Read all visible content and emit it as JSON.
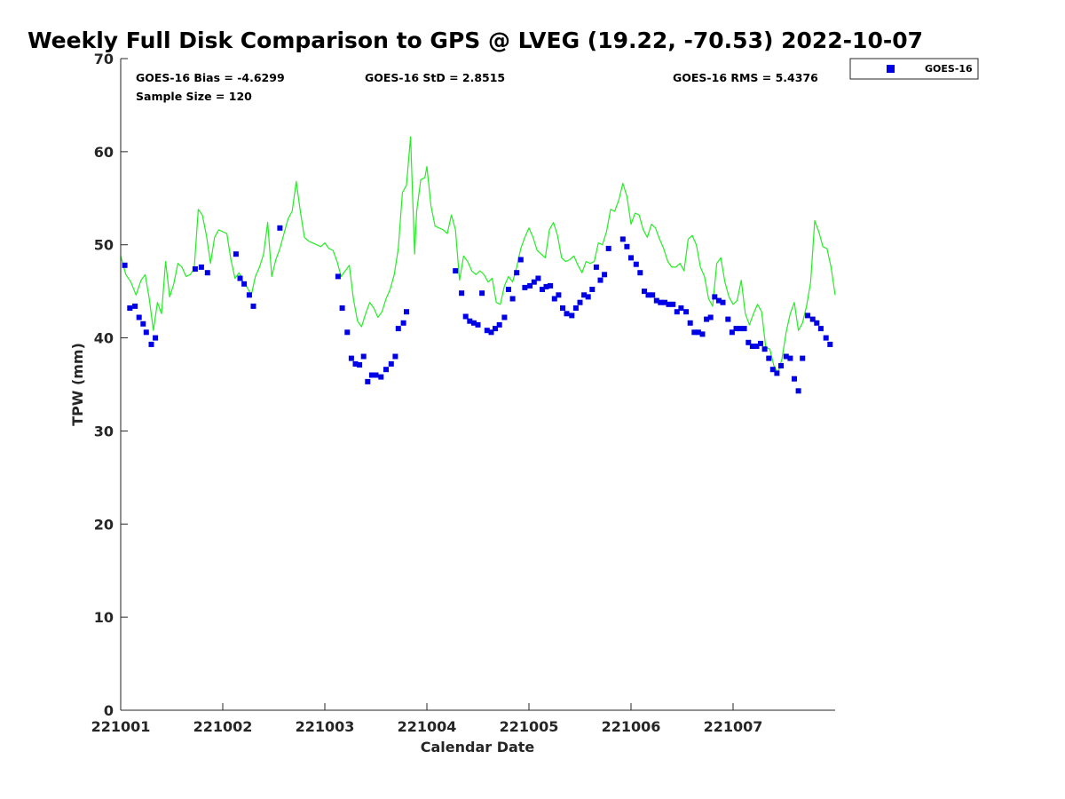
{
  "chart_data": {
    "type": "scatter",
    "title": "Weekly Full Disk Comparison to GPS @ LVEG (19.22, -70.53) 2022-10-07",
    "xlabel": "Calendar Date",
    "ylabel": "TPW (mm)",
    "xlim": [
      0,
      7
    ],
    "ylim": [
      0,
      70
    ],
    "x_tick_labels": [
      "221001",
      "221002",
      "221003",
      "221004",
      "221005",
      "221006",
      "221007"
    ],
    "y_tick_labels": [
      "0",
      "10",
      "20",
      "30",
      "40",
      "50",
      "60",
      "70"
    ],
    "stats": {
      "bias": "GOES-16 Bias = -4.6299",
      "std": "GOES-16 StD = 2.8515",
      "rms": "GOES-16 RMS = 5.4376",
      "sample": "Sample Size = 120"
    },
    "legend": {
      "position": "outside top-right",
      "entries": [
        "GOES-16"
      ]
    },
    "colors": {
      "goes": "#0000e6",
      "gps": "#22ee22",
      "axis": "#262626"
    },
    "series": [
      {
        "name": "GOES-16",
        "marker": "square",
        "points": [
          [
            0.04,
            47.8
          ],
          [
            0.09,
            43.2
          ],
          [
            0.14,
            43.4
          ],
          [
            0.18,
            42.2
          ],
          [
            0.22,
            41.5
          ],
          [
            0.25,
            40.6
          ],
          [
            0.3,
            39.3
          ],
          [
            0.34,
            40.0
          ],
          [
            0.73,
            47.4
          ],
          [
            0.79,
            47.6
          ],
          [
            0.85,
            47.0
          ],
          [
            1.13,
            49.0
          ],
          [
            1.17,
            46.4
          ],
          [
            1.21,
            45.8
          ],
          [
            1.26,
            44.6
          ],
          [
            1.3,
            43.4
          ],
          [
            1.56,
            51.8
          ],
          [
            2.13,
            46.6
          ],
          [
            2.17,
            43.2
          ],
          [
            2.22,
            40.6
          ],
          [
            2.26,
            37.8
          ],
          [
            2.3,
            37.2
          ],
          [
            2.34,
            37.1
          ],
          [
            2.38,
            38.0
          ],
          [
            2.42,
            35.3
          ],
          [
            2.46,
            36.0
          ],
          [
            2.5,
            36.0
          ],
          [
            2.55,
            35.8
          ],
          [
            2.6,
            36.6
          ],
          [
            2.65,
            37.2
          ],
          [
            2.69,
            38.0
          ],
          [
            2.72,
            41.0
          ],
          [
            2.77,
            41.6
          ],
          [
            2.8,
            42.8
          ],
          [
            3.28,
            47.2
          ],
          [
            3.34,
            44.8
          ],
          [
            3.38,
            42.3
          ],
          [
            3.42,
            41.8
          ],
          [
            3.46,
            41.6
          ],
          [
            3.5,
            41.4
          ],
          [
            3.54,
            44.8
          ],
          [
            3.59,
            40.8
          ],
          [
            3.63,
            40.6
          ],
          [
            3.67,
            41.0
          ],
          [
            3.71,
            41.4
          ],
          [
            3.76,
            42.2
          ],
          [
            3.8,
            45.2
          ],
          [
            3.84,
            44.2
          ],
          [
            3.88,
            47.0
          ],
          [
            3.92,
            48.4
          ],
          [
            3.96,
            45.4
          ],
          [
            4.01,
            45.6
          ],
          [
            4.05,
            46.0
          ],
          [
            4.09,
            46.4
          ],
          [
            4.13,
            45.2
          ],
          [
            4.17,
            45.5
          ],
          [
            4.21,
            45.6
          ],
          [
            4.25,
            44.2
          ],
          [
            4.29,
            44.6
          ],
          [
            4.33,
            43.2
          ],
          [
            4.37,
            42.6
          ],
          [
            4.42,
            42.4
          ],
          [
            4.46,
            43.2
          ],
          [
            4.5,
            43.8
          ],
          [
            4.54,
            44.6
          ],
          [
            4.58,
            44.4
          ],
          [
            4.62,
            45.2
          ],
          [
            4.66,
            47.6
          ],
          [
            4.7,
            46.2
          ],
          [
            4.74,
            46.8
          ],
          [
            4.78,
            49.6
          ],
          [
            4.92,
            50.6
          ],
          [
            4.96,
            49.8
          ],
          [
            5.0,
            48.6
          ],
          [
            5.05,
            47.9
          ],
          [
            5.09,
            47.0
          ],
          [
            5.13,
            45.0
          ],
          [
            5.17,
            44.6
          ],
          [
            5.21,
            44.6
          ],
          [
            5.25,
            44.0
          ],
          [
            5.29,
            43.8
          ],
          [
            5.33,
            43.8
          ],
          [
            5.37,
            43.6
          ],
          [
            5.41,
            43.6
          ],
          [
            5.45,
            42.8
          ],
          [
            5.49,
            43.2
          ],
          [
            5.54,
            42.8
          ],
          [
            5.58,
            41.6
          ],
          [
            5.62,
            40.6
          ],
          [
            5.66,
            40.6
          ],
          [
            5.7,
            40.4
          ],
          [
            5.74,
            42.0
          ],
          [
            5.78,
            42.2
          ],
          [
            5.82,
            44.4
          ],
          [
            5.86,
            44.0
          ],
          [
            5.9,
            43.8
          ],
          [
            5.95,
            42.0
          ],
          [
            5.99,
            40.6
          ],
          [
            6.03,
            41.0
          ],
          [
            6.07,
            41.0
          ],
          [
            6.11,
            41.0
          ],
          [
            6.15,
            39.5
          ],
          [
            6.19,
            39.1
          ],
          [
            6.23,
            39.1
          ],
          [
            6.27,
            39.4
          ],
          [
            6.31,
            38.8
          ],
          [
            6.35,
            37.8
          ],
          [
            6.39,
            36.6
          ],
          [
            6.43,
            36.2
          ],
          [
            6.47,
            37.0
          ],
          [
            6.52,
            38.0
          ],
          [
            6.56,
            37.8
          ],
          [
            6.6,
            35.6
          ],
          [
            6.64,
            34.3
          ],
          [
            6.68,
            37.8
          ],
          [
            6.73,
            42.4
          ],
          [
            6.78,
            42.0
          ],
          [
            6.82,
            41.6
          ],
          [
            6.86,
            41.0
          ],
          [
            6.91,
            40.0
          ],
          [
            6.95,
            39.3
          ]
        ]
      },
      {
        "name": "GPS",
        "marker": "line",
        "points": [
          [
            0.0,
            48.8
          ],
          [
            0.05,
            46.8
          ],
          [
            0.1,
            46.0
          ],
          [
            0.15,
            44.6
          ],
          [
            0.2,
            46.2
          ],
          [
            0.24,
            46.8
          ],
          [
            0.28,
            44.2
          ],
          [
            0.32,
            40.8
          ],
          [
            0.36,
            43.8
          ],
          [
            0.4,
            42.6
          ],
          [
            0.44,
            48.2
          ],
          [
            0.48,
            44.4
          ],
          [
            0.52,
            45.8
          ],
          [
            0.56,
            48.0
          ],
          [
            0.6,
            47.6
          ],
          [
            0.64,
            46.6
          ],
          [
            0.68,
            46.8
          ],
          [
            0.72,
            47.4
          ],
          [
            0.76,
            53.8
          ],
          [
            0.8,
            53.2
          ],
          [
            0.84,
            51.0
          ],
          [
            0.88,
            48.0
          ],
          [
            0.92,
            50.8
          ],
          [
            0.96,
            51.6
          ],
          [
            1.0,
            51.4
          ],
          [
            1.04,
            51.2
          ],
          [
            1.08,
            48.4
          ],
          [
            1.12,
            46.4
          ],
          [
            1.16,
            47.0
          ],
          [
            1.2,
            46.0
          ],
          [
            1.24,
            45.4
          ],
          [
            1.28,
            44.6
          ],
          [
            1.32,
            46.6
          ],
          [
            1.36,
            47.6
          ],
          [
            1.4,
            49.0
          ],
          [
            1.44,
            52.4
          ],
          [
            1.48,
            46.6
          ],
          [
            1.52,
            48.4
          ],
          [
            1.56,
            49.6
          ],
          [
            1.6,
            51.2
          ],
          [
            1.64,
            52.8
          ],
          [
            1.68,
            53.6
          ],
          [
            1.72,
            56.8
          ],
          [
            1.76,
            53.6
          ],
          [
            1.8,
            50.8
          ],
          [
            1.84,
            50.4
          ],
          [
            1.88,
            50.2
          ],
          [
            1.92,
            50.0
          ],
          [
            1.96,
            49.8
          ],
          [
            2.0,
            50.2
          ],
          [
            2.04,
            49.6
          ],
          [
            2.08,
            49.4
          ],
          [
            2.12,
            48.2
          ],
          [
            2.16,
            46.6
          ],
          [
            2.2,
            47.2
          ],
          [
            2.24,
            47.8
          ],
          [
            2.28,
            44.2
          ],
          [
            2.32,
            41.8
          ],
          [
            2.36,
            41.2
          ],
          [
            2.4,
            42.6
          ],
          [
            2.44,
            43.8
          ],
          [
            2.48,
            43.2
          ],
          [
            2.52,
            42.2
          ],
          [
            2.56,
            42.8
          ],
          [
            2.6,
            44.2
          ],
          [
            2.64,
            45.2
          ],
          [
            2.68,
            46.8
          ],
          [
            2.72,
            49.6
          ],
          [
            2.76,
            55.6
          ],
          [
            2.8,
            56.4
          ],
          [
            2.84,
            61.6
          ],
          [
            2.88,
            49.0
          ],
          [
            2.9,
            53.6
          ],
          [
            2.94,
            57.0
          ],
          [
            2.98,
            57.2
          ],
          [
            3.0,
            58.4
          ],
          [
            3.04,
            54.2
          ],
          [
            3.08,
            52.0
          ],
          [
            3.12,
            51.8
          ],
          [
            3.16,
            51.6
          ],
          [
            3.2,
            51.2
          ],
          [
            3.24,
            53.2
          ],
          [
            3.28,
            51.6
          ],
          [
            3.32,
            46.2
          ],
          [
            3.36,
            48.8
          ],
          [
            3.4,
            48.2
          ],
          [
            3.44,
            47.2
          ],
          [
            3.48,
            46.8
          ],
          [
            3.52,
            47.2
          ],
          [
            3.56,
            46.8
          ],
          [
            3.6,
            46.0
          ],
          [
            3.64,
            46.4
          ],
          [
            3.68,
            43.8
          ],
          [
            3.72,
            43.6
          ],
          [
            3.76,
            45.6
          ],
          [
            3.8,
            46.6
          ],
          [
            3.84,
            46.0
          ],
          [
            3.88,
            47.6
          ],
          [
            3.92,
            49.6
          ],
          [
            3.96,
            50.8
          ],
          [
            4.0,
            51.8
          ],
          [
            4.04,
            50.8
          ],
          [
            4.08,
            49.4
          ],
          [
            4.12,
            49.0
          ],
          [
            4.16,
            48.6
          ],
          [
            4.2,
            51.6
          ],
          [
            4.24,
            52.4
          ],
          [
            4.28,
            51.0
          ],
          [
            4.32,
            48.6
          ],
          [
            4.36,
            48.2
          ],
          [
            4.4,
            48.4
          ],
          [
            4.44,
            48.8
          ],
          [
            4.48,
            47.8
          ],
          [
            4.52,
            47.0
          ],
          [
            4.56,
            48.2
          ],
          [
            4.6,
            48.0
          ],
          [
            4.64,
            48.2
          ],
          [
            4.68,
            50.2
          ],
          [
            4.72,
            50.0
          ],
          [
            4.76,
            51.4
          ],
          [
            4.8,
            53.8
          ],
          [
            4.84,
            53.6
          ],
          [
            4.88,
            54.8
          ],
          [
            4.92,
            56.6
          ],
          [
            4.96,
            55.2
          ],
          [
            5.0,
            52.2
          ],
          [
            5.04,
            53.4
          ],
          [
            5.08,
            53.2
          ],
          [
            5.12,
            51.6
          ],
          [
            5.16,
            50.8
          ],
          [
            5.2,
            52.2
          ],
          [
            5.24,
            51.8
          ],
          [
            5.28,
            50.6
          ],
          [
            5.32,
            49.6
          ],
          [
            5.36,
            48.2
          ],
          [
            5.4,
            47.6
          ],
          [
            5.44,
            47.6
          ],
          [
            5.48,
            48.0
          ],
          [
            5.52,
            47.2
          ],
          [
            5.56,
            50.6
          ],
          [
            5.6,
            51.0
          ],
          [
            5.64,
            50.0
          ],
          [
            5.68,
            47.6
          ],
          [
            5.72,
            46.6
          ],
          [
            5.76,
            44.2
          ],
          [
            5.8,
            43.4
          ],
          [
            5.84,
            48.0
          ],
          [
            5.88,
            48.6
          ],
          [
            5.92,
            46.0
          ],
          [
            5.96,
            44.4
          ],
          [
            6.0,
            43.6
          ],
          [
            6.04,
            44.0
          ],
          [
            6.08,
            46.2
          ],
          [
            6.12,
            42.6
          ],
          [
            6.16,
            41.4
          ],
          [
            6.2,
            42.6
          ],
          [
            6.24,
            43.6
          ],
          [
            6.28,
            42.8
          ],
          [
            6.32,
            39.0
          ],
          [
            6.36,
            38.8
          ],
          [
            6.4,
            37.0
          ],
          [
            6.44,
            36.2
          ],
          [
            6.48,
            37.8
          ],
          [
            6.52,
            40.6
          ],
          [
            6.56,
            42.6
          ],
          [
            6.6,
            43.8
          ],
          [
            6.64,
            40.8
          ],
          [
            6.68,
            41.6
          ],
          [
            6.72,
            43.4
          ],
          [
            6.76,
            46.0
          ],
          [
            6.8,
            52.6
          ],
          [
            6.84,
            51.4
          ],
          [
            6.88,
            49.8
          ],
          [
            6.92,
            49.6
          ],
          [
            6.96,
            47.6
          ],
          [
            7.0,
            44.6
          ]
        ]
      }
    ]
  }
}
